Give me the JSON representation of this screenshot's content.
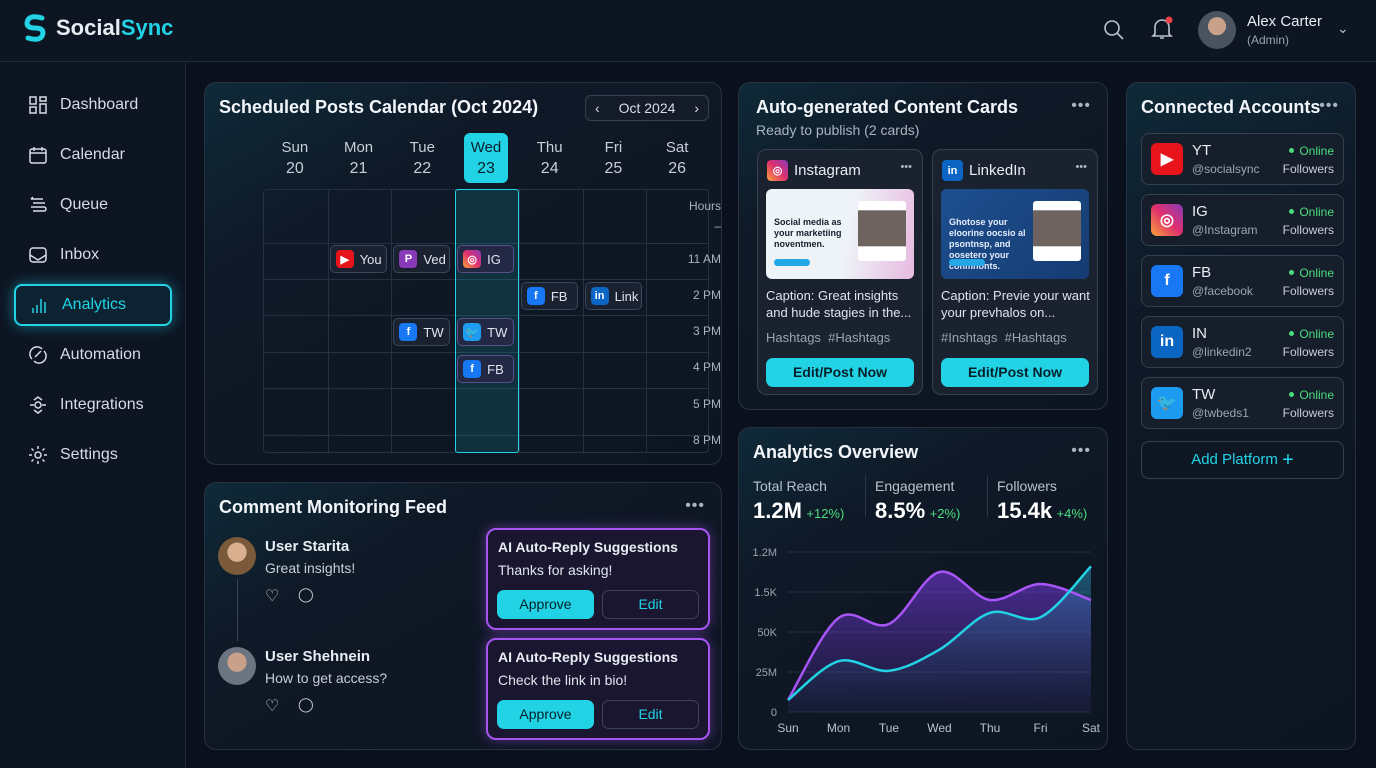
{
  "app": {
    "name_a": "Social",
    "name_b": "Sync"
  },
  "user": {
    "name": "Alex Carter",
    "role": "(Admin)"
  },
  "sidebar": {
    "items": [
      {
        "label": "Dashboard",
        "icon": "grid-icon"
      },
      {
        "label": "Calendar",
        "icon": "calendar-icon"
      },
      {
        "label": "Queue",
        "icon": "queue-icon"
      },
      {
        "label": "Inbox",
        "icon": "inbox-icon"
      },
      {
        "label": "Analytics",
        "icon": "bar-chart-icon",
        "active": true
      },
      {
        "label": "Automation",
        "icon": "automation-icon"
      },
      {
        "label": "Integrations",
        "icon": "integrations-icon"
      },
      {
        "label": "Settings",
        "icon": "gear-icon"
      }
    ]
  },
  "calendar": {
    "title": "Scheduled Posts Calendar (Oct 2024)",
    "month": "Oct 2024",
    "days": [
      {
        "d": "Sun",
        "n": "20"
      },
      {
        "d": "Mon",
        "n": "21"
      },
      {
        "d": "Tue",
        "n": "22"
      },
      {
        "d": "Wed",
        "n": "23",
        "today": true
      },
      {
        "d": "Thu",
        "n": "24"
      },
      {
        "d": "Fri",
        "n": "25"
      },
      {
        "d": "Sat",
        "n": "26"
      }
    ],
    "hours": [
      "Hours",
      "–",
      "11 AM",
      "2 PM",
      "3 PM",
      "4 PM",
      "5 PM",
      "8 PM"
    ],
    "events": [
      {
        "day": 1,
        "row": 1,
        "label": "You",
        "icon": "yt",
        "glyph": "▶"
      },
      {
        "day": 2,
        "row": 1,
        "label": "Ved",
        "icon": "pp",
        "glyph": "P"
      },
      {
        "day": 3,
        "row": 1,
        "label": "IG",
        "icon": "ig",
        "glyph": "◎"
      },
      {
        "day": 4,
        "row": 2,
        "label": "FB",
        "icon": "fb",
        "glyph": "f"
      },
      {
        "day": 5,
        "row": 2,
        "label": "Link",
        "icon": "li",
        "glyph": "in"
      },
      {
        "day": 2,
        "row": 3,
        "label": "TW",
        "icon": "fb",
        "glyph": "f"
      },
      {
        "day": 3,
        "row": 3,
        "label": "TW",
        "icon": "tw",
        "glyph": "🐦"
      },
      {
        "day": 3,
        "row": 4,
        "label": "FB",
        "icon": "fb",
        "glyph": "f"
      }
    ]
  },
  "content": {
    "title": "Auto-generated Content Cards",
    "subtitle": "Ready to publish (2 cards)",
    "cards": [
      {
        "platform": "Instagram",
        "icon": "ig",
        "glyph": "◎",
        "preview": "Social media as your marketiing noventmen.",
        "caption": "Caption: Great insights and hude stagies in the...",
        "tags": "Hashtags  #Hashtags",
        "button": "Edit/Post Now"
      },
      {
        "platform": "LinkedIn",
        "icon": "li",
        "glyph": "in",
        "preview": "Ghotose your eloorine oocsio al psontnsp, and oosetero your conmnonts.",
        "caption": "Caption: Previe your want your prevhalos on...",
        "tags": "#Inshtags  #Hashtags",
        "button": "Edit/Post Now"
      }
    ]
  },
  "accounts": {
    "title": "Connected Accounts",
    "add": "Add Platform",
    "items": [
      {
        "name": "YT",
        "handle": "@socialsync",
        "icon": "yt",
        "glyph": "▶",
        "status": "Online",
        "sub": "Followers"
      },
      {
        "name": "IG",
        "handle": "@Instagram",
        "icon": "ig",
        "glyph": "◎",
        "status": "Online",
        "sub": "Followers"
      },
      {
        "name": "FB",
        "handle": "@facebook",
        "icon": "fb",
        "glyph": "f",
        "status": "Online",
        "sub": "Followers"
      },
      {
        "name": "IN",
        "handle": "@linkedin2",
        "icon": "li",
        "glyph": "in",
        "status": "Online",
        "sub": "Followers"
      },
      {
        "name": "TW",
        "handle": "@twbeds1",
        "icon": "tw",
        "glyph": "🐦",
        "status": "Online",
        "sub": "Followers"
      }
    ]
  },
  "comments": {
    "title": "Comment Monitoring Feed",
    "items": [
      {
        "user": "User Starita",
        "text": "Great insights!",
        "reply_title": "AI Auto-Reply Suggestions",
        "reply": "Thanks for asking!",
        "approve": "Approve",
        "edit": "Edit"
      },
      {
        "user": "User Shehnein",
        "text": "How to get access?",
        "reply_title": "AI Auto-Reply Suggestions",
        "reply": "Check the link in bio!",
        "approve": "Approve",
        "edit": "Edit"
      }
    ]
  },
  "analytics": {
    "title": "Analytics Overview",
    "stats": [
      {
        "label": "Total Reach",
        "value": "1.2M",
        "delta": "+12%)"
      },
      {
        "label": "Engagement",
        "value": "8.5%",
        "delta": "+2%)"
      },
      {
        "label": "Followers",
        "value": "15.4k",
        "delta": "+4%)"
      }
    ]
  },
  "chart_data": {
    "type": "area",
    "categories": [
      "Sun",
      "Mon",
      "Tue",
      "Wed",
      "Thu",
      "Fri",
      "Sat"
    ],
    "ytick_labels": [
      "0",
      "25M",
      "50K",
      "1.5K",
      "1.2M"
    ],
    "ylim": [
      0,
      4
    ],
    "grid": true,
    "series": [
      {
        "color": "#a855f7",
        "values": [
          0.3,
          2.35,
          2.2,
          3.5,
          2.8,
          3.2,
          2.8
        ]
      },
      {
        "color": "#22d3e6",
        "values": [
          0.3,
          1.27,
          1.03,
          1.56,
          2.48,
          2.37,
          3.64
        ]
      }
    ]
  }
}
